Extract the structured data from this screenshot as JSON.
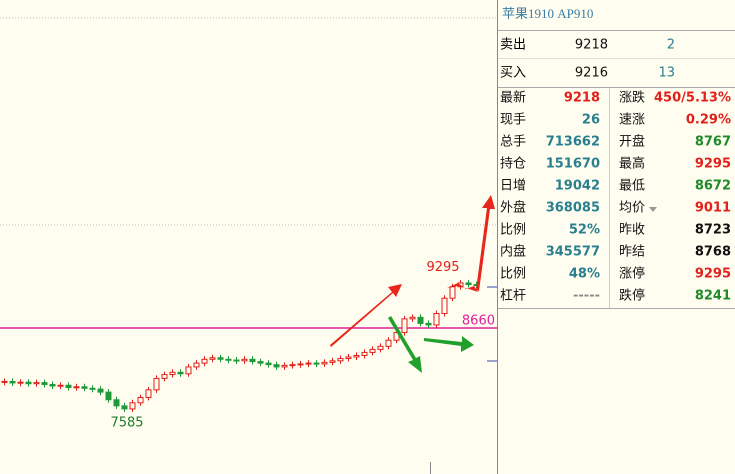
{
  "chart_data": {
    "type": "candlestick",
    "values": [
      7960,
      7940,
      7950,
      7930,
      7945,
      7920,
      7900,
      7910,
      7880,
      7890,
      7870,
      7860,
      7820,
      7720,
      7640,
      7600,
      7680,
      7750,
      7850,
      8000,
      8050,
      8080,
      8060,
      8150,
      8200,
      8250,
      8270,
      8250,
      8240,
      8230,
      8250,
      8220,
      8200,
      8180,
      8150,
      8170,
      8180,
      8190,
      8200,
      8190,
      8210,
      8230,
      8260,
      8280,
      8300,
      8340,
      8380,
      8420,
      8500,
      8600,
      8780,
      8800,
      8720,
      8700,
      8850,
      9050,
      9200,
      9250,
      9230,
      9218
    ],
    "high": 9295,
    "low": 7585,
    "ref": 8660,
    "up_color": "#e0201b",
    "down_color": "#1f9a3a",
    "ref_color": "#e0209a"
  },
  "quote": {
    "title": "苹果1910  AP910",
    "sell": {
      "label": "卖出",
      "price": 9218,
      "qty": 2
    },
    "buy": {
      "label": "买入",
      "price": 9216,
      "qty": 13
    },
    "left": [
      {
        "label": "最新",
        "value": 9218,
        "color": "#e0201b"
      },
      {
        "label": "现手",
        "value": 26,
        "color": "#2a7f8f"
      },
      {
        "label": "总手",
        "value": 713662,
        "color": "#2a7f8f"
      },
      {
        "label": "持仓",
        "value": 151670,
        "color": "#2a7f8f"
      },
      {
        "label": "日增",
        "value": 19042,
        "color": "#2a7f8f"
      },
      {
        "label": "外盘",
        "value": 368085,
        "color": "#2a7f8f"
      },
      {
        "label": "比例",
        "value": "52%",
        "color": "#2a7f8f"
      },
      {
        "label": "内盘",
        "value": 345577,
        "color": "#2a7f8f"
      },
      {
        "label": "比例",
        "value": "48%",
        "color": "#2a7f8f"
      },
      {
        "label": "杠杆",
        "value": "-----",
        "color": "#888888"
      }
    ],
    "right": [
      {
        "label": "涨跌",
        "value": "450/5.13%",
        "color": "#e0201b"
      },
      {
        "label": "速涨",
        "value": "0.29%",
        "color": "#e0201b"
      },
      {
        "label": "开盘",
        "value": 8767,
        "color": "#1f8a2a"
      },
      {
        "label": "最高",
        "value": 9295,
        "color": "#e0201b"
      },
      {
        "label": "最低",
        "value": 8672,
        "color": "#1f8a2a"
      },
      {
        "label": "均价",
        "value": 9011,
        "color": "#e0201b"
      },
      {
        "label": "昨收",
        "value": 8723,
        "color": "#111111"
      },
      {
        "label": "昨结",
        "value": 8768,
        "color": "#111111"
      },
      {
        "label": "涨停",
        "value": 9295,
        "color": "#e0201b"
      },
      {
        "label": "跌停",
        "value": 8241,
        "color": "#1f8a2a"
      }
    ]
  }
}
